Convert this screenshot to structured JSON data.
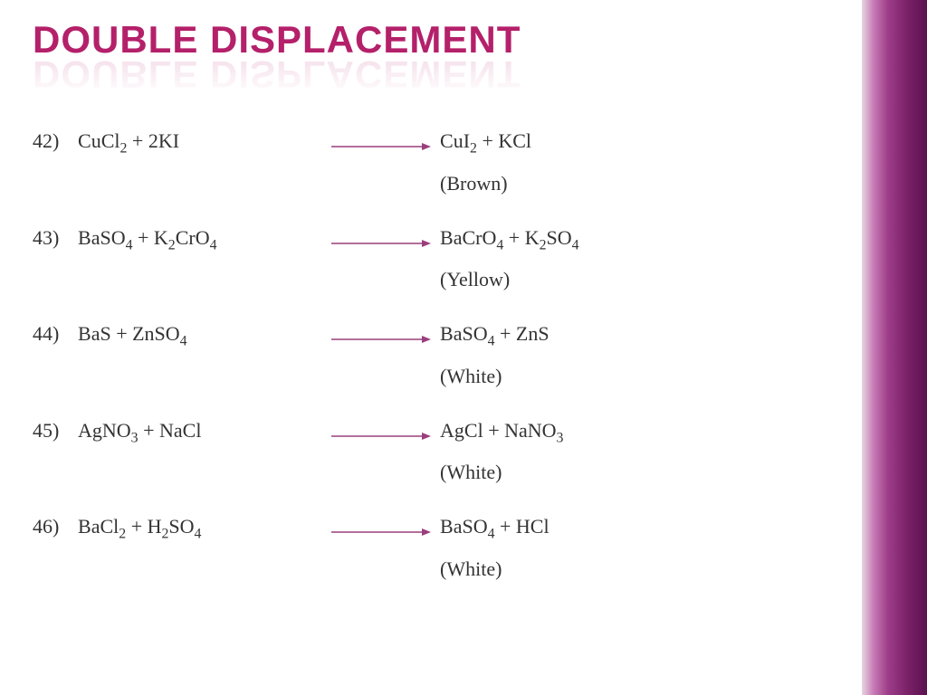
{
  "title": "Double Displacement",
  "arrow_color": "#9a3f7c",
  "accent_gradient": [
    "#e8d5e2",
    "#c87bb5",
    "#9e3d8a",
    "#7a2168",
    "#5c1250"
  ],
  "title_color": "#b4206a",
  "text_color": "#333333",
  "body_fontsize": 22,
  "title_fontsize": 42,
  "equations": [
    {
      "num": "42)",
      "left_html": "C<span class='mixed'>u</span>C<span class='mixed'>l</span><sub>2</sub> + 2KI",
      "right_html": "C<span class='mixed'>u</span>I<sub>2</sub>  +  KC<span class='mixed'>l</span>",
      "note": "(Brown)"
    },
    {
      "num": "43)",
      "left_html": "B<span class='mixed'>a</span>SO<sub>4</sub> + K<sub>2</sub>C<span class='mixed'>r</span>O<sub>4</sub>",
      "right_html": "B<span class='mixed'>a</span>C<span class='mixed'>r</span>O<sub>4</sub> + K<sub>2</sub>SO<sub>4</sub>",
      "note": "(Yellow)"
    },
    {
      "num": "44)",
      "left_html": "B<span class='mixed'>a</span>S + Z<span class='mixed'>n</span>SO<sub>4</sub>",
      "right_html": "B<span class='mixed'>a</span>SO<sub>4</sub> + Z<span class='mixed'>n</span>S",
      "note": "(White)"
    },
    {
      "num": "45)",
      "left_html": "A<span class='mixed'>g</span>NO<sub>3</sub> + N<span class='mixed'>a</span>C<span class='mixed'>l</span>",
      "right_html": "A<span class='mixed'>g</span>C<span class='mixed'>l</span> + N<span class='mixed'>a</span>NO<sub>3</sub>",
      "note": "(White)"
    },
    {
      "num": "46)",
      "left_html": "B<span class='mixed'>a</span>C<span class='mixed'>l</span><sub>2</sub> + H<sub>2</sub>SO<sub>4</sub>",
      "right_html": "B<span class='mixed'>a</span>SO<sub>4</sub> + HC<span class='mixed'>l</span>",
      "note": "(White)"
    }
  ]
}
